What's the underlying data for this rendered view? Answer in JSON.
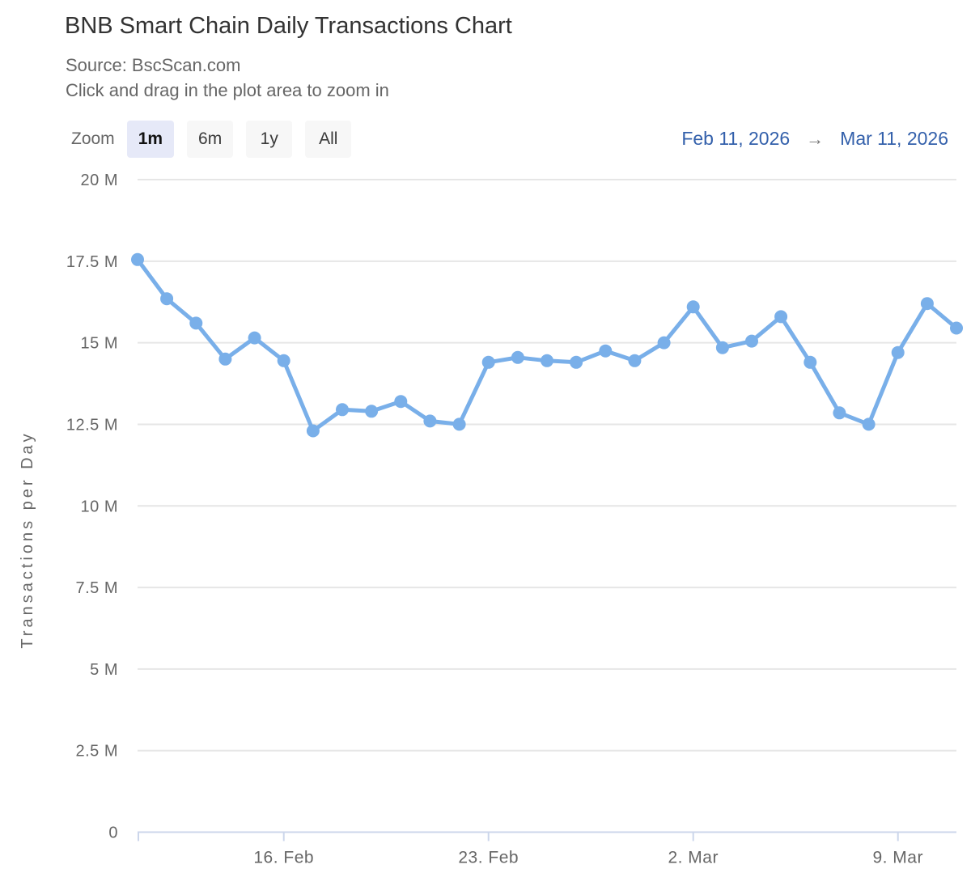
{
  "header": {
    "title": "BNB Smart Chain Daily Transactions Chart",
    "source_line": "Source: BscScan.com",
    "hint_line": "Click and drag in the plot area to zoom in"
  },
  "controls": {
    "zoom_label": "Zoom",
    "buttons": [
      {
        "label": "1m",
        "selected": true
      },
      {
        "label": "6m",
        "selected": false
      },
      {
        "label": "1y",
        "selected": false
      },
      {
        "label": "All",
        "selected": false
      }
    ],
    "date_from": "Feb 11, 2026",
    "arrow": "→",
    "date_to": "Mar 11, 2026"
  },
  "colors": {
    "line": "#79afe9",
    "marker": "#79afe9",
    "grid": "#e6e6e6",
    "axis_line": "#ccd6eb",
    "axis_label": "#666666",
    "selected_button_bg": "#e6e9f8",
    "button_bg": "#f7f7f7",
    "date_link": "#3360ab"
  },
  "chart_data": {
    "type": "line",
    "title": "BNB Smart Chain Daily Transactions Chart",
    "xlabel": "",
    "ylabel": "Transactions per Day",
    "ylim_millions": [
      0,
      20
    ],
    "grid": true,
    "legend": "none",
    "unit": "transactions (millions)",
    "y_ticks": [
      {
        "value": 20,
        "label": "20 M"
      },
      {
        "value": 17.5,
        "label": "17.5 M"
      },
      {
        "value": 15,
        "label": "15 M"
      },
      {
        "value": 12.5,
        "label": "12.5 M"
      },
      {
        "value": 10,
        "label": "10 M"
      },
      {
        "value": 7.5,
        "label": "7.5 M"
      },
      {
        "value": 5,
        "label": "5 M"
      },
      {
        "value": 2.5,
        "label": "2.5 M"
      },
      {
        "value": 0,
        "label": "0"
      }
    ],
    "x_ticks": [
      {
        "index": 5,
        "label": "16. Feb"
      },
      {
        "index": 12,
        "label": "23. Feb"
      },
      {
        "index": 19,
        "label": "2. Mar"
      },
      {
        "index": 26,
        "label": "9. Mar"
      }
    ],
    "x": [
      "Feb 11",
      "Feb 12",
      "Feb 13",
      "Feb 14",
      "Feb 15",
      "Feb 16",
      "Feb 17",
      "Feb 18",
      "Feb 19",
      "Feb 20",
      "Feb 21",
      "Feb 22",
      "Feb 23",
      "Feb 24",
      "Feb 25",
      "Feb 26",
      "Feb 27",
      "Feb 28",
      "Mar 1",
      "Mar 2",
      "Mar 3",
      "Mar 4",
      "Mar 5",
      "Mar 6",
      "Mar 7",
      "Mar 8",
      "Mar 9",
      "Mar 10",
      "Mar 11"
    ],
    "values_millions": [
      17.55,
      16.35,
      15.6,
      14.5,
      15.15,
      14.45,
      12.3,
      12.95,
      12.9,
      13.2,
      12.6,
      12.5,
      14.4,
      14.55,
      14.45,
      14.4,
      14.75,
      14.45,
      15.0,
      16.1,
      14.85,
      15.05,
      15.8,
      14.4,
      12.85,
      12.5,
      14.7,
      16.2,
      15.45
    ]
  }
}
